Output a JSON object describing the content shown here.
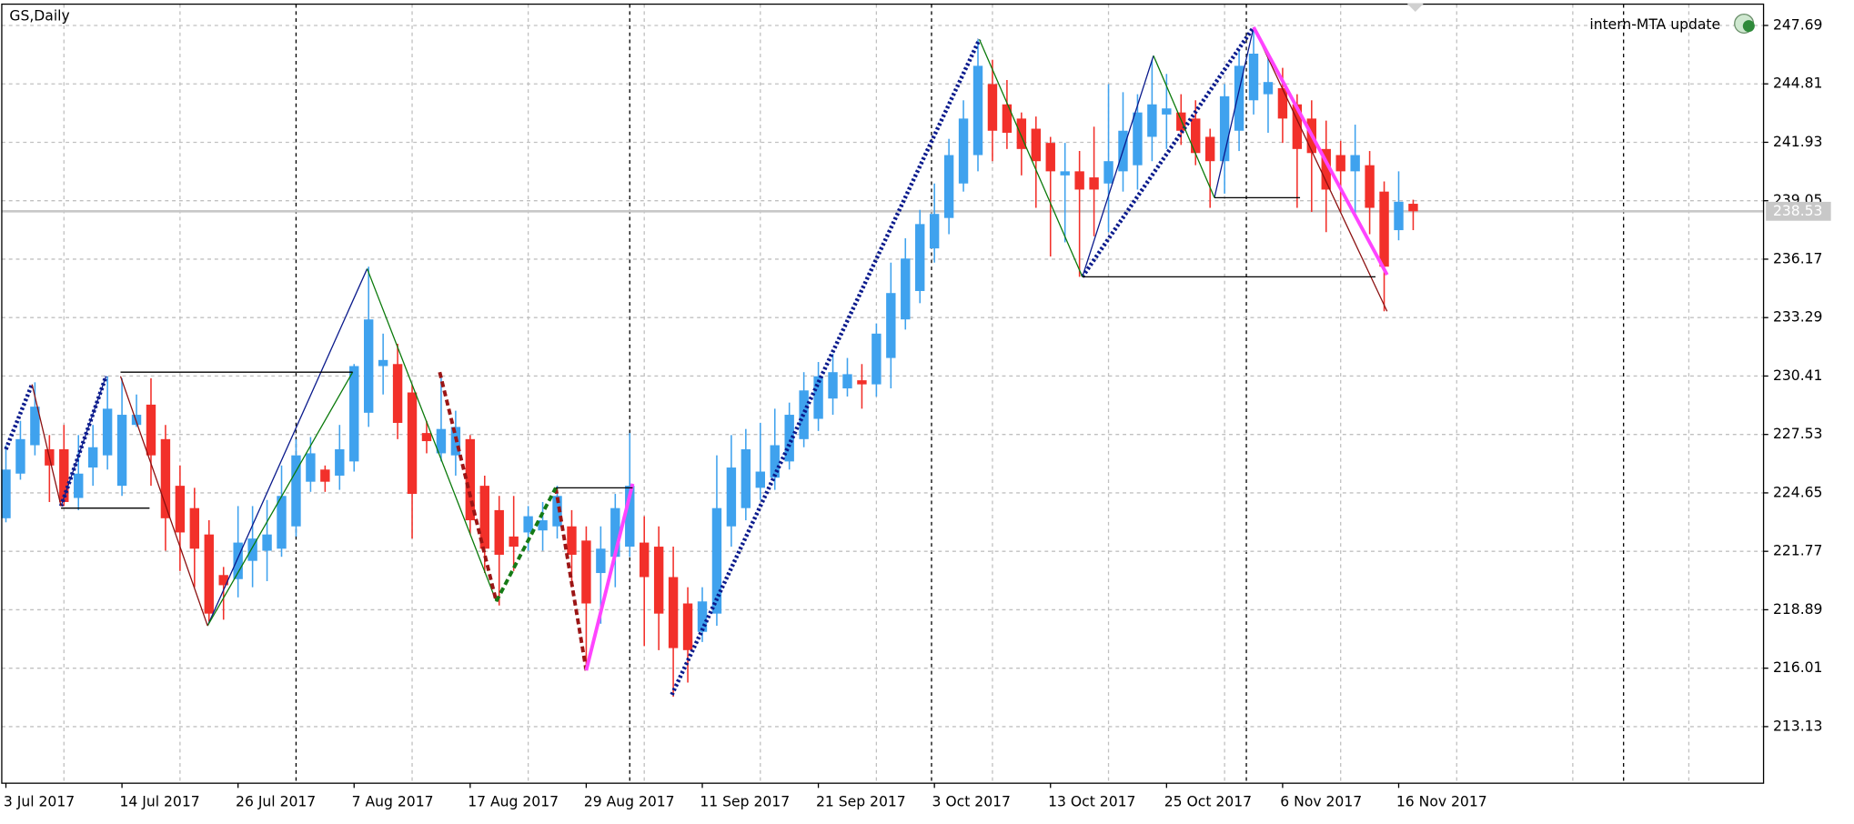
{
  "chart_data": {
    "type": "candlestick",
    "title": "GS,Daily",
    "annotation": "intern-MTA update",
    "categories": [
      "3 Jul 2017",
      null,
      null,
      null,
      null,
      null,
      null,
      null,
      "14 Jul 2017",
      null,
      null,
      null,
      null,
      null,
      null,
      null,
      "26 Jul 2017",
      null,
      null,
      null,
      null,
      null,
      null,
      null,
      "7 Aug 2017",
      null,
      null,
      null,
      null,
      null,
      null,
      null,
      "17 Aug 2017",
      null,
      null,
      null,
      null,
      null,
      null,
      null,
      "29 Aug 2017",
      null,
      null,
      null,
      null,
      null,
      null,
      null,
      "11 Sep 2017",
      null,
      null,
      null,
      null,
      null,
      null,
      null,
      "21 Sep 2017",
      null,
      null,
      null,
      null,
      null,
      null,
      null,
      "3 Oct 2017",
      null,
      null,
      null,
      null,
      null,
      null,
      null,
      "13 Oct 2017",
      null,
      null,
      null,
      null,
      null,
      null,
      null,
      "25 Oct 2017",
      null,
      null,
      null,
      null,
      null,
      null,
      null,
      "6 Nov 2017",
      null,
      null,
      null,
      null,
      null,
      null,
      null,
      "16 Nov 2017",
      null
    ],
    "open": [
      223.4,
      225.6,
      227.0,
      226.8,
      226.8,
      224.4,
      225.9,
      226.5,
      225.0,
      228.0,
      229.0,
      227.3,
      225.0,
      223.9,
      222.6,
      220.6,
      220.4,
      221.3,
      221.8,
      221.9,
      223.0,
      225.2,
      225.8,
      225.5,
      226.2,
      228.6,
      230.9,
      231.0,
      229.6,
      227.6,
      226.6,
      226.5,
      227.3,
      225.0,
      223.8,
      222.5,
      222.7,
      222.8,
      223.0,
      223.0,
      222.3,
      220.7,
      221.5,
      222.0,
      222.2,
      222.0,
      220.5,
      219.2,
      217.8,
      218.7,
      223.0,
      223.9,
      224.9,
      225.4,
      226.2,
      227.3,
      228.3,
      229.3,
      229.8,
      230.2,
      230.0,
      231.3,
      233.2,
      234.6,
      236.7,
      238.2,
      239.9,
      241.3,
      244.8,
      243.8,
      243.1,
      242.6,
      241.9,
      240.3,
      240.5,
      240.2,
      239.9,
      240.5,
      240.8,
      242.2,
      243.3,
      243.4,
      243.1,
      242.2,
      241.0,
      242.5,
      244.0,
      244.3,
      244.6,
      243.8,
      243.1,
      241.6,
      241.3,
      240.5,
      240.8,
      239.5,
      237.6,
      238.9
    ],
    "high": [
      227.0,
      228.2,
      230.1,
      227.5,
      228.0,
      227.5,
      228.0,
      230.4,
      230.3,
      229.5,
      230.3,
      228.0,
      226.0,
      224.9,
      223.3,
      221.0,
      224.0,
      224.0,
      224.3,
      226.0,
      227.3,
      227.4,
      226.0,
      228.0,
      231.0,
      235.8,
      232.5,
      232.0,
      230.0,
      228.2,
      230.5,
      228.7,
      227.5,
      225.5,
      224.5,
      224.5,
      224.0,
      224.2,
      225.0,
      223.8,
      223.0,
      223.0,
      224.6,
      227.6,
      223.5,
      223.0,
      222.0,
      220.0,
      220.0,
      226.5,
      227.5,
      227.8,
      228.1,
      228.8,
      229.1,
      230.6,
      231.1,
      231.5,
      231.3,
      231.0,
      233.0,
      236.0,
      237.2,
      238.6,
      239.9,
      242.1,
      244.0,
      247.0,
      246.0,
      245.0,
      243.4,
      243.2,
      242.2,
      241.9,
      241.5,
      242.7,
      244.8,
      244.4,
      244.3,
      246.0,
      245.3,
      244.3,
      244.0,
      242.6,
      244.8,
      246.5,
      247.5,
      246.3,
      245.6,
      244.3,
      244.0,
      243.0,
      242.0,
      242.8,
      241.5,
      240.0,
      240.5,
      239.1
    ],
    "low": [
      223.2,
      225.3,
      226.5,
      224.2,
      224.0,
      223.8,
      225.0,
      225.8,
      224.5,
      227.9,
      225.0,
      221.8,
      220.8,
      220.0,
      218.3,
      218.4,
      219.5,
      220.0,
      220.3,
      221.5,
      222.5,
      224.7,
      224.7,
      224.8,
      225.7,
      227.9,
      229.5,
      227.3,
      222.4,
      226.6,
      226.2,
      225.5,
      222.6,
      220.7,
      219.1,
      220.8,
      221.8,
      221.8,
      222.4,
      220.0,
      216.0,
      218.2,
      220.0,
      221.5,
      217.1,
      216.9,
      214.6,
      215.3,
      217.3,
      218.1,
      222.0,
      223.3,
      224.3,
      224.8,
      225.8,
      226.9,
      227.7,
      228.5,
      229.4,
      228.8,
      229.4,
      229.8,
      232.7,
      234.0,
      236.0,
      237.4,
      239.5,
      240.5,
      241.0,
      241.6,
      240.3,
      238.7,
      236.3,
      237.0,
      235.3,
      237.3,
      237.5,
      239.5,
      239.6,
      241.0,
      241.6,
      241.8,
      240.8,
      238.7,
      239.4,
      241.5,
      243.3,
      242.4,
      241.9,
      238.7,
      238.5,
      237.5,
      238.5,
      238.3,
      237.4,
      233.6,
      237.1,
      237.6
    ],
    "close": [
      225.8,
      227.3,
      228.9,
      226.0,
      224.2,
      225.6,
      226.9,
      228.8,
      228.5,
      228.5,
      226.5,
      223.4,
      222.7,
      221.9,
      218.7,
      220.1,
      222.2,
      222.4,
      222.6,
      224.5,
      226.5,
      226.6,
      225.2,
      226.8,
      230.9,
      233.2,
      231.2,
      228.1,
      224.6,
      227.2,
      227.8,
      227.9,
      223.3,
      221.9,
      221.6,
      222.0,
      223.5,
      223.3,
      224.5,
      221.6,
      219.2,
      221.9,
      223.9,
      225.0,
      220.5,
      218.7,
      217.0,
      216.9,
      219.3,
      223.9,
      225.9,
      226.8,
      225.7,
      227.0,
      228.5,
      229.7,
      230.4,
      230.6,
      230.5,
      230.0,
      232.5,
      234.5,
      236.2,
      237.9,
      238.4,
      241.3,
      243.1,
      245.7,
      242.5,
      242.4,
      241.6,
      241.0,
      240.5,
      240.5,
      239.6,
      239.6,
      241.0,
      242.5,
      243.4,
      243.8,
      243.6,
      242.5,
      241.4,
      241.0,
      244.2,
      245.7,
      246.3,
      244.9,
      243.1,
      241.6,
      241.4,
      239.6,
      240.5,
      241.3,
      238.7,
      235.8,
      239.0,
      238.53
    ],
    "up_color": "#3fa2ee",
    "down_color": "#f2302a",
    "price_line_color": "#c8c8c8",
    "ylim": [
      210.34,
      248.74
    ],
    "yticks": [
      247.69,
      244.81,
      241.93,
      239.05,
      236.17,
      233.29,
      230.41,
      227.53,
      224.65,
      221.77,
      218.89,
      216.01,
      213.13
    ],
    "grid": true,
    "overlays": [
      {
        "color": "#0a1a8c",
        "dash": "dot",
        "width": 3.5,
        "x": [
          0,
          1.8,
          null,
          3.8,
          6.9,
          null,
          45.9,
          67.1,
          null,
          74.2,
          86
        ],
        "y": [
          226.8,
          230.0,
          null,
          224.0,
          230.4,
          null,
          214.7,
          247.0,
          null,
          235.3,
          247.6
        ]
      },
      {
        "color": "#0a1a8c",
        "dash": "solid",
        "width": 1,
        "x": [
          3.8,
          6.9,
          null,
          13.9,
          24.9,
          null,
          74.2,
          79.1,
          null,
          83.3,
          86
        ],
        "y": [
          224.0,
          230.4,
          null,
          218.1,
          235.7,
          null,
          235.3,
          246.2,
          null,
          239.2,
          247.6
        ]
      },
      {
        "color": "#0b7a0b",
        "dash": "solid",
        "width": 1,
        "x": [
          24.9,
          33.8,
          null,
          67.1,
          74.2,
          null,
          79.1,
          83.3,
          null,
          13.9,
          23.9
        ],
        "y": [
          235.7,
          219.3,
          null,
          247.0,
          235.3,
          null,
          246.2,
          239.2,
          null,
          218.1,
          230.6
        ]
      },
      {
        "color": "#8b1010",
        "dash": "solid",
        "width": 1,
        "x": [
          1.8,
          3.8,
          null,
          7.9,
          13.9,
          null,
          86,
          95.2
        ],
        "y": [
          230.0,
          224.0,
          null,
          230.4,
          218.1,
          null,
          247.6,
          233.6
        ]
      },
      {
        "color": "#9b1515",
        "dash": "dash",
        "width": 3,
        "x": [
          29.9,
          33.8,
          null,
          37.9,
          40
        ],
        "y": [
          230.6,
          219.3,
          null,
          224.9,
          215.9
        ]
      },
      {
        "color": "#157a15",
        "dash": "dash",
        "width": 3,
        "x": [
          33.8,
          37.9
        ],
        "y": [
          219.3,
          224.9
        ]
      },
      {
        "color": "#ff44ff",
        "dash": "solid",
        "width": 3,
        "x": [
          40,
          43.2,
          null,
          86,
          95.2
        ],
        "y": [
          215.9,
          225.1,
          null,
          247.6,
          235.4
        ]
      },
      {
        "color": "#000000",
        "dash": "solid",
        "width": 1,
        "x": [
          3.8,
          9.9,
          null,
          7.9,
          23.9,
          null,
          37.9,
          43.2,
          null,
          74.2,
          94.4,
          null,
          83.3,
          89.2
        ],
        "y": [
          223.9,
          223.9,
          null,
          230.6,
          230.6,
          null,
          224.9,
          224.9,
          null,
          235.3,
          235.3,
          null,
          239.2,
          239.2
        ]
      }
    ]
  }
}
